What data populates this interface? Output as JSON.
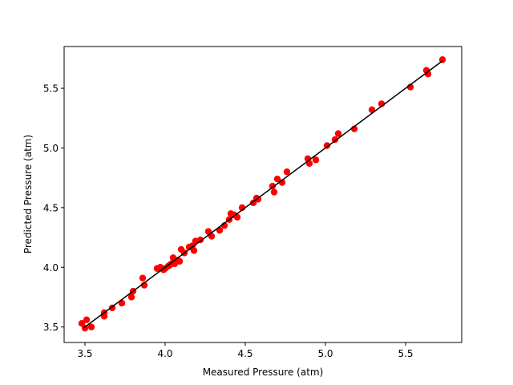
{
  "chart_data": {
    "type": "scatter",
    "title": "",
    "xlabel": "Measured Pressure (atm)",
    "ylabel": "Predicted Pressure (atm)",
    "xlim": [
      3.37,
      5.85
    ],
    "ylim": [
      3.37,
      5.85
    ],
    "xticks": [
      3.5,
      4.0,
      4.5,
      5.0,
      5.5
    ],
    "yticks": [
      3.5,
      4.0,
      4.5,
      5.0,
      5.5
    ],
    "xtick_labels": [
      "3.5",
      "4.0",
      "4.5",
      "5.0",
      "5.5"
    ],
    "ytick_labels": [
      "3.5",
      "4.0",
      "4.5",
      "5.0",
      "5.5"
    ],
    "grid": false,
    "marker_color": "#ff0000",
    "line_color": "#000000",
    "series": [
      {
        "type": "scatter",
        "x": [
          3.48,
          3.5,
          3.51,
          3.54,
          3.62,
          3.62,
          3.67,
          3.73,
          3.79,
          3.8,
          3.86,
          3.87,
          3.95,
          3.97,
          3.99,
          4.0,
          4.02,
          4.03,
          4.04,
          4.05,
          4.06,
          4.08,
          4.09,
          4.1,
          4.12,
          4.15,
          4.17,
          4.18,
          4.19,
          4.22,
          4.27,
          4.29,
          4.34,
          4.37,
          4.4,
          4.41,
          4.43,
          4.45,
          4.48,
          4.55,
          4.57,
          4.58,
          4.67,
          4.68,
          4.7,
          4.73,
          4.76,
          4.89,
          4.9,
          4.94,
          5.01,
          5.06,
          5.08,
          5.18,
          5.29,
          5.35,
          5.53,
          5.63,
          5.64,
          5.73
        ],
        "y": [
          3.53,
          3.49,
          3.56,
          3.5,
          3.59,
          3.62,
          3.66,
          3.7,
          3.75,
          3.8,
          3.91,
          3.85,
          3.99,
          4.0,
          3.98,
          3.99,
          4.01,
          4.02,
          4.03,
          4.08,
          4.03,
          4.06,
          4.05,
          4.15,
          4.12,
          4.17,
          4.18,
          4.14,
          4.22,
          4.23,
          4.3,
          4.26,
          4.31,
          4.35,
          4.4,
          4.45,
          4.44,
          4.42,
          4.5,
          4.54,
          4.58,
          4.57,
          4.68,
          4.63,
          4.74,
          4.71,
          4.8,
          4.91,
          4.87,
          4.9,
          5.02,
          5.07,
          5.12,
          5.16,
          5.32,
          5.37,
          5.51,
          5.65,
          5.62,
          5.74
        ]
      },
      {
        "type": "line",
        "x": [
          3.49,
          5.73
        ],
        "y": [
          3.49,
          5.73
        ]
      }
    ]
  }
}
